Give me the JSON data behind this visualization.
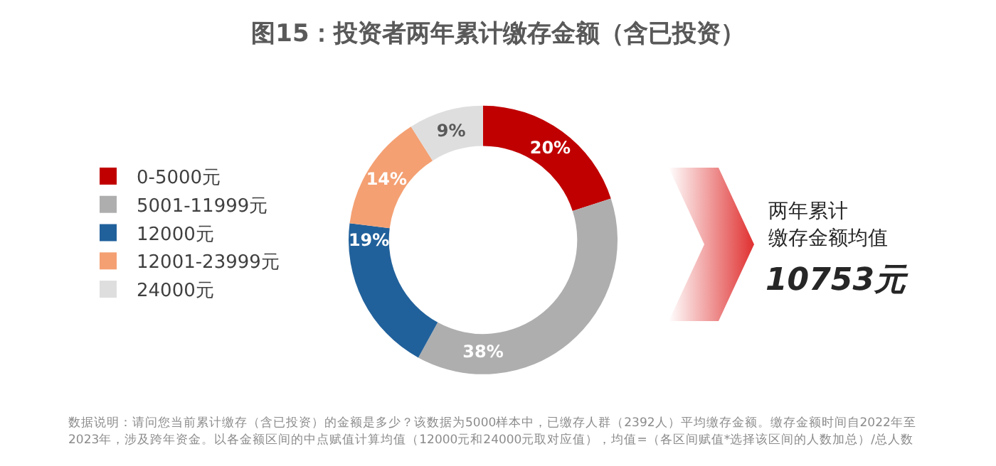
{
  "chart_data": {
    "type": "donut",
    "title": "图15：投资者两年累计缴存金额（含已投资）",
    "categories": [
      "0-5000元",
      "5001-11999元",
      "12000元",
      "12001-23999元",
      "24000元"
    ],
    "values": [
      20,
      38,
      19,
      14,
      9
    ],
    "value_labels": [
      "20%",
      "38%",
      "19%",
      "14%",
      "9%"
    ],
    "colors": [
      "#c00000",
      "#aeaeaf",
      "#21619b",
      "#f4a073",
      "#dedede"
    ],
    "legend": "left",
    "annotations": [
      "两年累计",
      "缴存金额均值",
      "10753元",
      "数据说明：请问您当前累计缴存（含已投资）的金额是多少？该数据为5000样本中，已缴存人群（2392人）平均缴存金额。缴存金额时间自2022年至2023年，涉及跨年资金。以各金额区间的中点赋值计算均值（12000元和24000元取对应值），均值=（各区间赋值*选择该区间的人数加总）/总人数"
    ]
  }
}
